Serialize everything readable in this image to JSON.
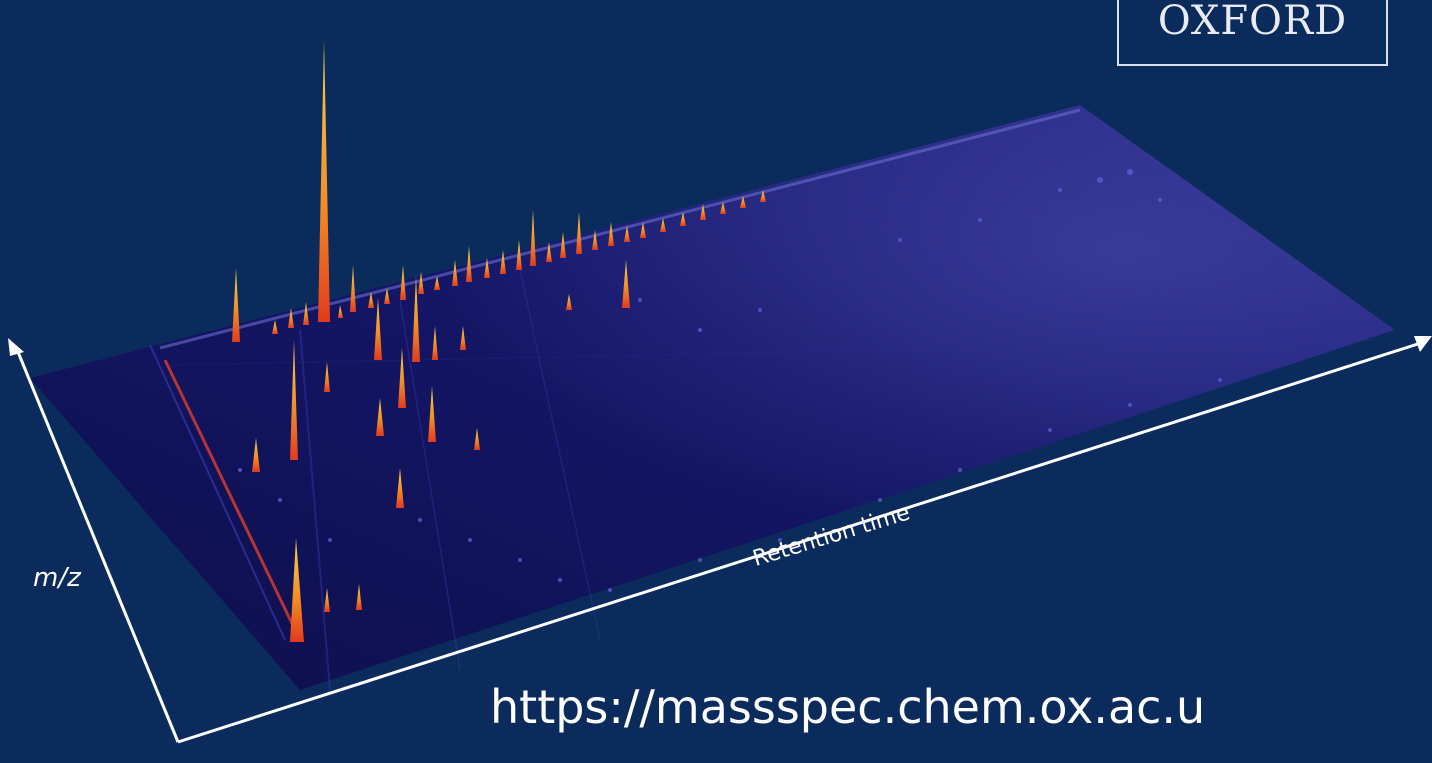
{
  "logo": {
    "text": "OXFORD"
  },
  "axes": {
    "y_label": "m/z",
    "x_label": "Retention time"
  },
  "footer": {
    "url": "https://massspec.chem.ox.ac.u"
  },
  "colors": {
    "background": "#0b2b5c",
    "plane": "#12135a",
    "peak_high": "#f5c842",
    "peak_low": "#e8401f",
    "axis": "#ffffff"
  }
}
